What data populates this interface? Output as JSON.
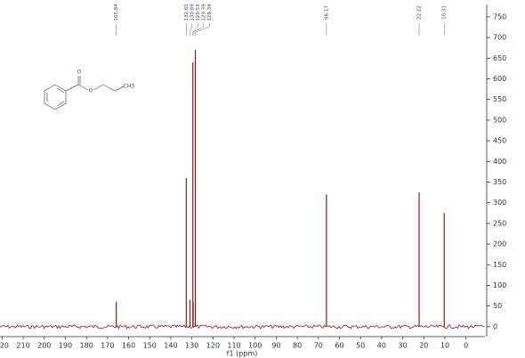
{
  "chart_data": {
    "type": "spectrum",
    "x_label": "f1 (ppm)",
    "x": [
      165.84,
      132.65,
      130.89,
      129.53,
      129.39,
      128.34,
      66.17,
      22.22,
      10.31
    ],
    "values": [
      60,
      360,
      65,
      640,
      60,
      670,
      320,
      325,
      275
    ],
    "color": "#8b1a1a",
    "xlim": [
      221,
      -9
    ],
    "xticks": [
      220,
      210,
      200,
      190,
      180,
      170,
      160,
      150,
      140,
      130,
      120,
      110,
      100,
      90,
      80,
      70,
      60,
      50,
      40,
      30,
      20,
      10,
      0
    ],
    "ylim": [
      -24,
      780
    ],
    "yticks": [
      0,
      50,
      100,
      150,
      200,
      250,
      300,
      350,
      400,
      450,
      500,
      550,
      600,
      650,
      700,
      750
    ],
    "structure_labels": [
      "O",
      "O",
      "CH3"
    ]
  }
}
